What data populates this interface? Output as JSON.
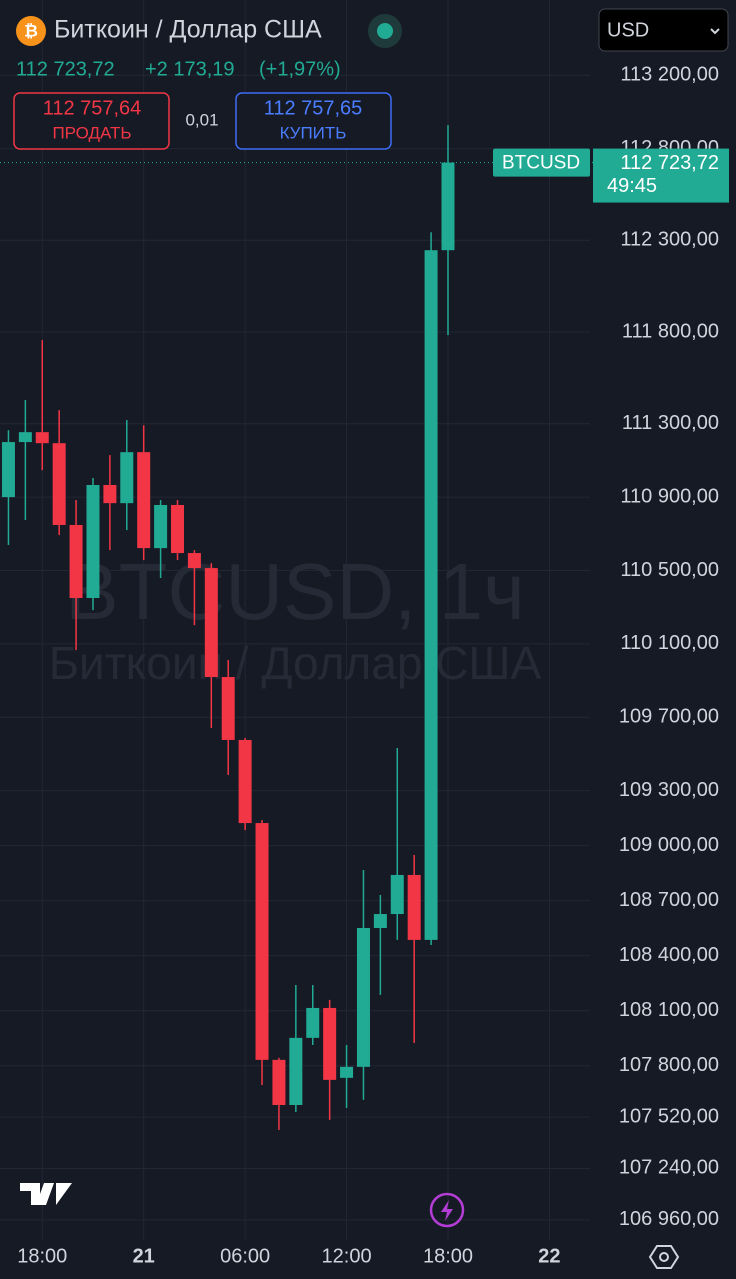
{
  "header": {
    "title": "Биткоин / Доллар США",
    "price": "112 723,72",
    "change": "+2 173,19",
    "change_percent": "(+1,97%)",
    "currency": "USD",
    "sell": {
      "price": "112 757,64",
      "label": "ПРОДАТЬ"
    },
    "spread": "0,01",
    "buy": {
      "price": "112 757,65",
      "label": "КУПИТЬ"
    }
  },
  "chart_data": {
    "type": "candlestick",
    "watermark": {
      "symbol": "BTCUSD, 1ч",
      "name": "Биткоин / Доллар США"
    },
    "symbol": "BTCUSD",
    "last_price": {
      "value": 112723.72,
      "label": "112 723,72"
    },
    "countdown": "49:45",
    "up_color": "#22ab94",
    "down_color": "#f23645",
    "x": [
      0,
      1,
      2,
      3,
      4,
      5,
      6,
      7,
      8,
      9,
      10,
      11,
      12,
      13,
      14,
      15,
      16,
      17,
      18,
      19,
      20,
      21,
      22,
      23,
      24,
      25,
      26
    ],
    "open": [
      110900,
      111200,
      111254,
      111194,
      110748,
      110350,
      110966,
      110867,
      111145,
      110622,
      110857,
      110595,
      110513,
      109919,
      109576,
      109123,
      107832,
      107586,
      107952,
      108115,
      107734,
      107794,
      108551,
      108627,
      108840,
      108486,
      112246
    ],
    "high": [
      111265,
      111429,
      111756,
      111374,
      110884,
      111004,
      111129,
      111320,
      111292,
      110884,
      110884,
      110611,
      110540,
      110012,
      109587,
      109140,
      107843,
      108240,
      108240,
      108159,
      107913,
      108867,
      108731,
      109532,
      108949,
      112344,
      112928
    ],
    "low": [
      110639,
      110775,
      111047,
      110693,
      110066,
      110284,
      110611,
      110720,
      110557,
      110459,
      110557,
      110202,
      109641,
      109385,
      109085,
      107695,
      107450,
      107548,
      107913,
      107505,
      107570,
      107614,
      108186,
      108486,
      107924,
      108458,
      111783
    ],
    "close": [
      111200,
      111254,
      111194,
      110748,
      110350,
      110966,
      110867,
      111145,
      110622,
      110857,
      110595,
      110513,
      109919,
      109576,
      109123,
      107832,
      107586,
      107952,
      108115,
      107723,
      107794,
      108551,
      108627,
      108840,
      108486,
      112246,
      112723.72
    ],
    "xlim": [
      -0.5,
      34.4
    ],
    "xticks": [
      {
        "value": 2,
        "label": "18:00"
      },
      {
        "value": 8,
        "label": "21"
      },
      {
        "value": 14,
        "label": "06:00"
      },
      {
        "value": 20,
        "label": "12:00"
      },
      {
        "value": 26,
        "label": "18:00"
      },
      {
        "value": 32,
        "label": "22"
      }
    ],
    "ylim": [
      106850,
      113610
    ],
    "yticks": [
      {
        "value": 113200,
        "label": "113 200,00"
      },
      {
        "value": 112800,
        "label": "112 800,00"
      },
      {
        "value": 112300,
        "label": "112 300,00"
      },
      {
        "value": 111800,
        "label": "111 800,00"
      },
      {
        "value": 111300,
        "label": "111 300,00"
      },
      {
        "value": 110900,
        "label": "110 900,00"
      },
      {
        "value": 110500,
        "label": "110 500,00"
      },
      {
        "value": 110100,
        "label": "110 100,00"
      },
      {
        "value": 109700,
        "label": "109 700,00"
      },
      {
        "value": 109300,
        "label": "109 300,00"
      },
      {
        "value": 109000,
        "label": "109 000,00"
      },
      {
        "value": 108700,
        "label": "108 700,00"
      },
      {
        "value": 108400,
        "label": "108 400,00"
      },
      {
        "value": 108100,
        "label": "108 100,00"
      },
      {
        "value": 107800,
        "label": "107 800,00"
      },
      {
        "value": 107520,
        "label": "107 520,00"
      },
      {
        "value": 107240,
        "label": "107 240,00"
      },
      {
        "value": 106960,
        "label": "106 960,00"
      }
    ],
    "grid": true
  }
}
